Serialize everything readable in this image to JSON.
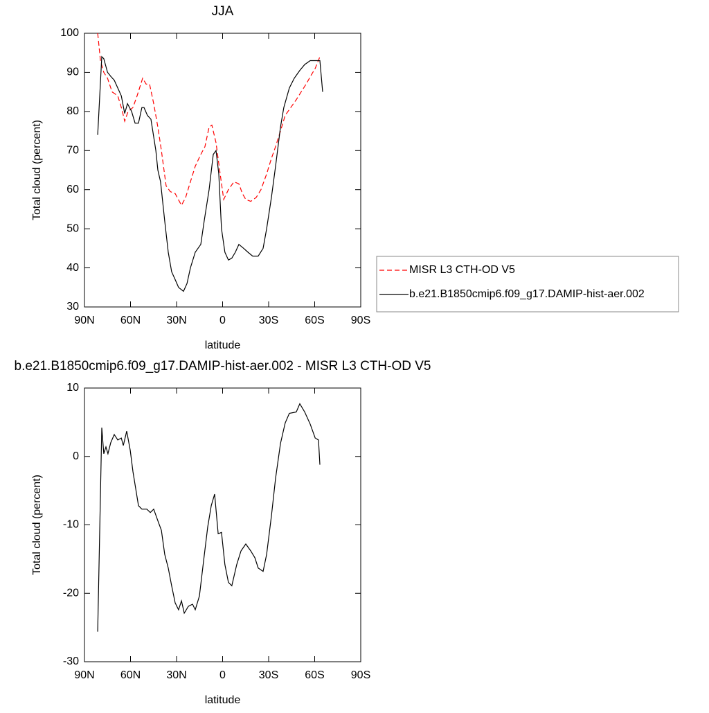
{
  "chart_data": [
    {
      "type": "line",
      "title": "JJA",
      "xlabel": "latitude",
      "ylabel": "Total cloud (percent)",
      "xlim": [
        90,
        -90
      ],
      "xticks": [
        {
          "value": 90,
          "label": "90N"
        },
        {
          "value": 60,
          "label": "60N"
        },
        {
          "value": 30,
          "label": "30N"
        },
        0,
        {
          "value": -30,
          "label": "30S"
        },
        {
          "value": -60,
          "label": "60S"
        },
        {
          "value": -90,
          "label": "90S"
        }
      ],
      "ylim": [
        30,
        100
      ],
      "yticks": [
        30,
        40,
        50,
        60,
        70,
        80,
        90,
        100
      ],
      "legend": "right",
      "series": [
        {
          "name": "MISR L3 CTH-OD V5",
          "color": "#ff0000",
          "dash": true,
          "x": [
            81.4,
            79.6,
            77.4,
            75,
            72,
            68.3,
            65.6,
            63.8,
            61.6,
            58.4,
            55.7,
            52.1,
            49.8,
            47.6,
            44.9,
            42.2,
            39.9,
            36.8,
            34.1,
            30.9,
            26.8,
            24.1,
            21,
            17.8,
            14.2,
            11.5,
            8.8,
            7,
            4.3,
            1.6,
            -0.7,
            -3.8,
            -7.4,
            -10.6,
            -12.9,
            -15.1,
            -18.3,
            -21.9,
            -25,
            -28.7,
            -31.8,
            -34.5,
            -37.7,
            -40.8,
            -44.4,
            -48,
            -51.2,
            -54.4,
            -58,
            -60.3,
            -63.4
          ],
          "values": [
            100,
            93,
            90,
            88.5,
            85,
            84,
            80.5,
            77.5,
            80,
            81,
            84,
            88.5,
            87,
            87,
            82,
            76,
            70,
            61,
            59.5,
            59,
            56,
            58,
            62,
            66,
            69,
            71,
            76,
            76.5,
            72,
            64,
            57.5,
            60,
            62,
            61.5,
            59,
            57.5,
            57,
            58,
            60,
            64,
            68,
            71,
            75,
            79,
            81,
            83,
            85,
            87,
            89.5,
            91,
            94
          ]
        },
        {
          "name": "b.e21.B1850cmip6.f09_g17.DAMIP-hist-aer.002",
          "color": "#000000",
          "dash": false,
          "x": [
            81.4,
            78.7,
            77.4,
            75,
            72.9,
            70.6,
            68.3,
            66,
            63.8,
            62,
            59.3,
            57,
            54.8,
            52.6,
            51.2,
            49,
            46.7,
            43.5,
            42.2,
            40.4,
            37.7,
            35.4,
            33.2,
            30.9,
            28.7,
            25.5,
            23.2,
            21,
            17.8,
            14.2,
            12,
            8.8,
            6.1,
            4.3,
            2.5,
            0.7,
            -1.5,
            -3.8,
            -6,
            -8.3,
            -10.6,
            -13.7,
            -16.5,
            -19.6,
            -23.2,
            -26.4,
            -28.7,
            -31.8,
            -34.5,
            -37.7,
            -39.9,
            -43.5,
            -46.7,
            -50.3,
            -53.5,
            -57.1,
            -60.3,
            -63.4,
            -65.2
          ],
          "values": [
            74,
            94,
            93.5,
            90,
            89,
            88,
            86,
            84,
            79.5,
            82,
            80,
            77,
            77,
            81,
            81,
            79,
            78,
            70,
            65,
            62,
            52,
            44,
            39,
            37,
            35,
            34,
            36,
            40,
            44,
            46,
            52,
            60,
            69,
            70,
            64,
            50,
            44,
            42,
            42.5,
            44,
            46,
            45,
            44,
            43,
            43,
            45,
            50,
            58,
            66,
            76,
            81,
            86,
            88.5,
            90.5,
            92,
            93,
            93,
            93,
            85
          ]
        }
      ]
    },
    {
      "type": "line",
      "title": "b.e21.B1850cmip6.f09_g17.DAMIP-hist-aer.002 - MISR L3 CTH-OD V5",
      "xlabel": "latitude",
      "ylabel": "Total cloud (percent)",
      "xlim": [
        90,
        -90
      ],
      "xticks": [
        {
          "value": 90,
          "label": "90N"
        },
        {
          "value": 60,
          "label": "60N"
        },
        {
          "value": 30,
          "label": "30N"
        },
        0,
        {
          "value": -30,
          "label": "30S"
        },
        {
          "value": -60,
          "label": "60S"
        },
        {
          "value": -90,
          "label": "90S"
        }
      ],
      "ylim": [
        -30,
        10
      ],
      "yticks": [
        -30,
        -20,
        -10,
        0,
        10
      ],
      "series": [
        {
          "color": "#000000",
          "dash": false,
          "x": [
            81.4,
            78.7,
            77.4,
            76,
            74.7,
            72.9,
            70.6,
            68.3,
            66,
            64.7,
            62.5,
            60.2,
            58.4,
            56.6,
            54.8,
            52.6,
            49.4,
            47.1,
            44.9,
            42.2,
            39.9,
            37.7,
            35.4,
            33.2,
            30.9,
            28.7,
            26.8,
            25,
            22.3,
            19.6,
            17.8,
            15.1,
            12.4,
            9.7,
            7.4,
            5.2,
            2.9,
            0.7,
            -1.5,
            -3.8,
            -6,
            -9.2,
            -12,
            -15.1,
            -18.3,
            -21,
            -23.2,
            -26.4,
            -28.7,
            -31.8,
            -34.5,
            -37.7,
            -40.8,
            -43.5,
            -48,
            -50.3,
            -53.5,
            -57.1,
            -60.3,
            -62.5,
            -63.4
          ],
          "values": [
            -25.6,
            4.2,
            0.4,
            1.4,
            0.4,
            2,
            3.2,
            2.4,
            2.7,
            1.6,
            3.7,
            0.9,
            -2.2,
            -4.7,
            -7.2,
            -7.7,
            -7.7,
            -8.2,
            -7.7,
            -9.4,
            -10.8,
            -14.3,
            -16.3,
            -18.9,
            -21.4,
            -22.4,
            -21.1,
            -22.9,
            -21.9,
            -21.6,
            -22.4,
            -20.4,
            -15.3,
            -10.3,
            -7.2,
            -5.5,
            -11.3,
            -11.1,
            -15.8,
            -18.4,
            -18.9,
            -15.8,
            -13.8,
            -12.8,
            -13.8,
            -14.8,
            -16.3,
            -16.8,
            -14.3,
            -8.7,
            -3.2,
            1.9,
            4.9,
            6.3,
            6.5,
            7.7,
            6.5,
            4.7,
            2.7,
            2.4,
            -1.2
          ]
        }
      ]
    }
  ]
}
